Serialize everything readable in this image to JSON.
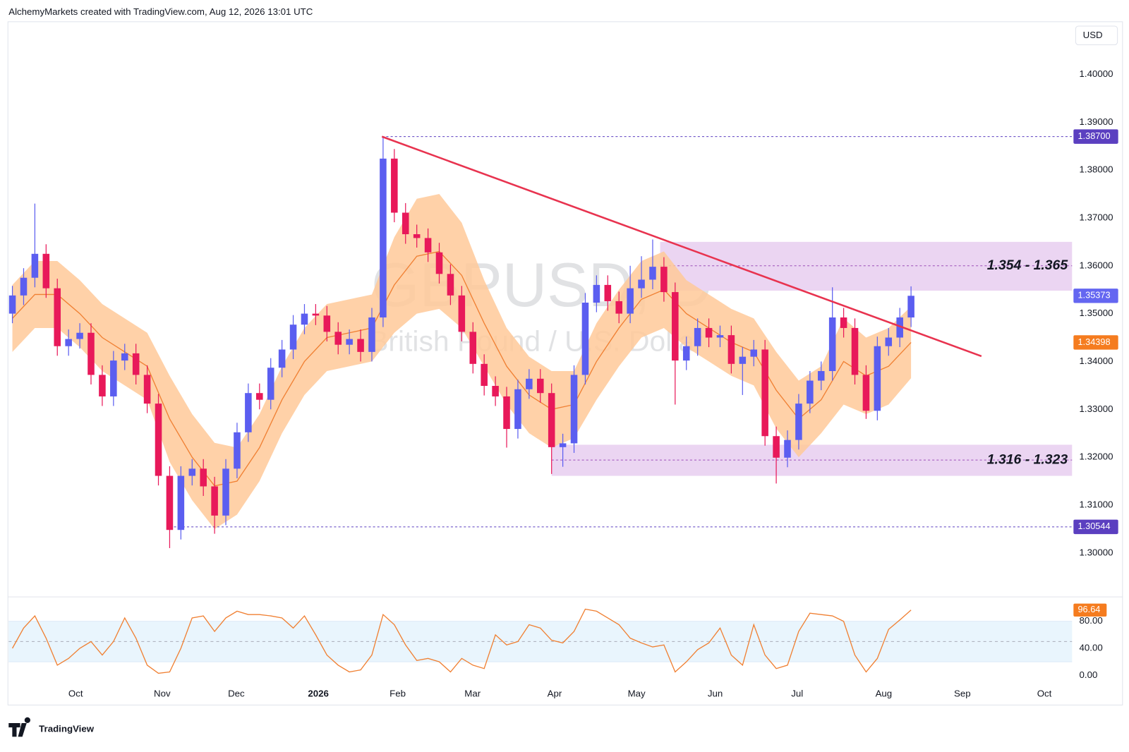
{
  "chart_data": {
    "type": "candlestick",
    "header": "AlchemyMarkets created with TradingView.com, Aug 12, 2026 13:01 UTC",
    "title": "GBPUSD, D",
    "subtitle": "British Pound / U.S. Dollar",
    "currency": "USD",
    "brand": "TradingView",
    "up_color": "#5b5ef0",
    "down_color": "#e8195a",
    "grid": false,
    "xlim": [
      -1,
      283
    ],
    "xticks": [
      {
        "value": 16.9,
        "label": "Oct"
      },
      {
        "value": 40,
        "label": "Nov"
      },
      {
        "value": 59.8,
        "label": "Dec"
      },
      {
        "value": 81.7,
        "label": "2026"
      },
      {
        "value": 102.9,
        "label": "Feb"
      },
      {
        "value": 122.9,
        "label": "Mar"
      },
      {
        "value": 144.8,
        "label": "Apr"
      },
      {
        "value": 166.7,
        "label": "May"
      },
      {
        "value": 187.7,
        "label": "Jun"
      },
      {
        "value": 209.6,
        "label": "Jul"
      },
      {
        "value": 232.7,
        "label": "Aug"
      },
      {
        "value": 253.7,
        "label": "Sep"
      },
      {
        "value": 275.6,
        "label": "Oct"
      }
    ],
    "ylim": [
      1.2908,
      1.411
    ],
    "yticks": [
      {
        "value": 1.3,
        "label": "1.30000"
      },
      {
        "value": 1.31,
        "label": "1.31000"
      },
      {
        "value": 1.32,
        "label": "1.32000"
      },
      {
        "value": 1.33,
        "label": "1.33000"
      },
      {
        "value": 1.34,
        "label": "1.34000"
      },
      {
        "value": 1.35,
        "label": "1.35000"
      },
      {
        "value": 1.36,
        "label": "1.36000"
      },
      {
        "value": 1.37,
        "label": "1.37000"
      },
      {
        "value": 1.38,
        "label": "1.38000"
      },
      {
        "value": 1.39,
        "label": "1.39000"
      },
      {
        "value": 1.4,
        "label": "1.40000"
      }
    ],
    "x": [
      0,
      3,
      6,
      9,
      12,
      15,
      18,
      21,
      24,
      27,
      30,
      33,
      36,
      39,
      42,
      45,
      48,
      51,
      54,
      57,
      60,
      63,
      66,
      69,
      72,
      75,
      78,
      81,
      84,
      87,
      90,
      93,
      96,
      99,
      102,
      105,
      108,
      111,
      114,
      117,
      120,
      123,
      126,
      129,
      132,
      135,
      138,
      141,
      144,
      147,
      150,
      153,
      156,
      159,
      162,
      165,
      168,
      171,
      174,
      177,
      180,
      183,
      186,
      189,
      192,
      195,
      198,
      201,
      204,
      207,
      210,
      213,
      216,
      219,
      222,
      225,
      228,
      231,
      234,
      237,
      240
    ],
    "open": [
      1.35,
      1.3538,
      1.3575,
      1.3625,
      1.3553,
      1.3432,
      1.3447,
      1.346,
      1.3372,
      1.3327,
      1.3402,
      1.3417,
      1.3372,
      1.3312,
      1.3161,
      1.3048,
      1.3161,
      1.3176,
      1.3139,
      1.3078,
      1.3176,
      1.3252,
      1.3334,
      1.332,
      1.3387,
      1.3425,
      1.3477,
      1.35,
      1.3496,
      1.3462,
      1.3435,
      1.3447,
      1.342,
      1.3492,
      1.3824,
      1.3711,
      1.3666,
      1.3658,
      1.3628,
      1.3583,
      1.3538,
      1.3462,
      1.3395,
      1.3349,
      1.3327,
      1.3259,
      1.3342,
      1.3364,
      1.3334,
      1.3221,
      1.3229,
      1.3372,
      1.3523,
      1.356,
      1.3526,
      1.35,
      1.3553,
      1.3571,
      1.3598,
      1.3545,
      1.3402,
      1.3432,
      1.347,
      1.345,
      1.3455,
      1.3395,
      1.341,
      1.3425,
      1.3244,
      1.3199,
      1.3236,
      1.3312,
      1.336,
      1.338,
      1.3492,
      1.347,
      1.3372,
      1.3297,
      1.3432,
      1.345,
      1.3492
    ],
    "high": [
      1.3558,
      1.3595,
      1.373,
      1.3645,
      1.3573,
      1.3467,
      1.348,
      1.348,
      1.3392,
      1.3422,
      1.3437,
      1.3437,
      1.3392,
      1.3332,
      1.3181,
      1.3181,
      1.3196,
      1.3196,
      1.3159,
      1.3196,
      1.3272,
      1.3354,
      1.3354,
      1.3407,
      1.3445,
      1.3497,
      1.352,
      1.352,
      1.3516,
      1.3482,
      1.3467,
      1.3467,
      1.3512,
      1.387,
      1.3844,
      1.3731,
      1.3686,
      1.3678,
      1.3648,
      1.3603,
      1.3558,
      1.3482,
      1.3415,
      1.3369,
      1.3347,
      1.3362,
      1.3384,
      1.3384,
      1.3354,
      1.3249,
      1.3392,
      1.3543,
      1.358,
      1.358,
      1.3546,
      1.36,
      1.362,
      1.3655,
      1.3618,
      1.3565,
      1.3452,
      1.349,
      1.349,
      1.3475,
      1.3475,
      1.343,
      1.3445,
      1.3445,
      1.3264,
      1.3256,
      1.3332,
      1.338,
      1.34,
      1.3555,
      1.3512,
      1.349,
      1.3392,
      1.3452,
      1.347,
      1.3512,
      1.3557
    ],
    "low": [
      1.348,
      1.3518,
      1.3555,
      1.3533,
      1.3412,
      1.3412,
      1.3427,
      1.3352,
      1.3307,
      1.3307,
      1.3382,
      1.3352,
      1.3292,
      1.3141,
      1.301,
      1.3028,
      1.3141,
      1.3119,
      1.304,
      1.3058,
      1.3156,
      1.3232,
      1.33,
      1.33,
      1.3367,
      1.3405,
      1.3457,
      1.3476,
      1.3442,
      1.3415,
      1.3415,
      1.34,
      1.34,
      1.3472,
      1.3691,
      1.3646,
      1.3638,
      1.3608,
      1.3563,
      1.3518,
      1.3442,
      1.3375,
      1.3329,
      1.3307,
      1.322,
      1.3239,
      1.3322,
      1.3314,
      1.3165,
      1.318,
      1.3209,
      1.3352,
      1.3503,
      1.3506,
      1.348,
      1.348,
      1.3533,
      1.3551,
      1.3525,
      1.331,
      1.3382,
      1.3412,
      1.343,
      1.343,
      1.3375,
      1.333,
      1.339,
      1.3224,
      1.3145,
      1.3179,
      1.3216,
      1.3292,
      1.334,
      1.336,
      1.345,
      1.3352,
      1.328,
      1.3277,
      1.3412,
      1.343,
      1.3472
    ],
    "close": [
      1.3538,
      1.3575,
      1.3625,
      1.3553,
      1.3432,
      1.3447,
      1.346,
      1.3372,
      1.3327,
      1.3402,
      1.3417,
      1.3372,
      1.3312,
      1.3161,
      1.3048,
      1.3161,
      1.3176,
      1.3139,
      1.3078,
      1.3176,
      1.3252,
      1.3334,
      1.332,
      1.3387,
      1.3425,
      1.3477,
      1.35,
      1.3496,
      1.3462,
      1.3435,
      1.3447,
      1.342,
      1.3492,
      1.3824,
      1.3711,
      1.3666,
      1.3658,
      1.3628,
      1.3583,
      1.3538,
      1.3462,
      1.3395,
      1.3349,
      1.3327,
      1.3259,
      1.3342,
      1.3364,
      1.3334,
      1.3221,
      1.3229,
      1.3372,
      1.3523,
      1.356,
      1.3526,
      1.35,
      1.3553,
      1.3571,
      1.3598,
      1.3545,
      1.3402,
      1.3432,
      1.347,
      1.345,
      1.3455,
      1.3395,
      1.341,
      1.3425,
      1.3244,
      1.3199,
      1.3236,
      1.3312,
      1.336,
      1.338,
      1.3492,
      1.347,
      1.3372,
      1.3297,
      1.3432,
      1.345,
      1.3492,
      1.35373
    ],
    "band": {
      "fill": "#ffc999",
      "line_color": "#f08033",
      "x": [
        0,
        6,
        12,
        18,
        24,
        30,
        36,
        42,
        48,
        54,
        60,
        66,
        72,
        78,
        84,
        90,
        96,
        102,
        108,
        114,
        120,
        126,
        132,
        138,
        144,
        150,
        156,
        162,
        168,
        174,
        180,
        186,
        192,
        198,
        204,
        210,
        216,
        222,
        228,
        234,
        240
      ],
      "upper": [
        1.356,
        1.361,
        1.361,
        1.357,
        1.352,
        1.349,
        1.346,
        1.337,
        1.329,
        1.323,
        1.322,
        1.329,
        1.339,
        1.347,
        1.352,
        1.353,
        1.354,
        1.366,
        1.374,
        1.375,
        1.369,
        1.357,
        1.347,
        1.341,
        1.338,
        1.338,
        1.348,
        1.355,
        1.361,
        1.363,
        1.357,
        1.354,
        1.351,
        1.349,
        1.342,
        1.336,
        1.339,
        1.349,
        1.345,
        1.347,
        1.3515
      ],
      "middle": [
        1.349,
        1.354,
        1.354,
        1.35,
        1.345,
        1.342,
        1.339,
        1.328,
        1.32,
        1.314,
        1.315,
        1.322,
        1.332,
        1.34,
        1.345,
        1.346,
        1.347,
        1.356,
        1.362,
        1.363,
        1.358,
        1.348,
        1.339,
        1.333,
        1.33,
        1.331,
        1.34,
        1.347,
        1.353,
        1.355,
        1.35,
        1.347,
        1.344,
        1.342,
        1.334,
        1.328,
        1.332,
        1.34,
        1.337,
        1.339,
        1.34398
      ],
      "lower": [
        1.342,
        1.347,
        1.347,
        1.343,
        1.338,
        1.335,
        1.332,
        1.319,
        1.311,
        1.305,
        1.308,
        1.315,
        1.325,
        1.333,
        1.338,
        1.339,
        1.34,
        1.346,
        1.35,
        1.351,
        1.347,
        1.339,
        1.331,
        1.325,
        1.322,
        1.324,
        1.332,
        1.339,
        1.345,
        1.347,
        1.343,
        1.34,
        1.337,
        1.335,
        1.326,
        1.32,
        1.325,
        1.331,
        1.329,
        1.331,
        1.3365
      ]
    },
    "zones": [
      {
        "label": "1.354 - 1.365",
        "low": 1.3548,
        "high": 1.365,
        "mid": 1.36,
        "from_x": 173,
        "color": "#ebd5f2"
      },
      {
        "label": "1.316 - 1.323",
        "low": 1.3161,
        "high": 1.3226,
        "mid": 1.3194,
        "from_x": 144,
        "color": "#ebd5f2"
      }
    ],
    "levels": [
      {
        "value": 1.387,
        "label": "1.38700",
        "from_x": 98.7,
        "color": "#5b3fc0"
      },
      {
        "value": 1.30544,
        "label": "1.30544",
        "from_x": 42,
        "color": "#5b3fc0"
      }
    ],
    "price_tags": [
      {
        "value": 1.35373,
        "label": "1.35373",
        "color": "#6466f1"
      },
      {
        "value": 1.34398,
        "label": "1.34398",
        "color": "#f57c1f"
      }
    ],
    "trendline": {
      "x": [
        98.7,
        258.8
      ],
      "y": [
        1.387,
        1.3411
      ],
      "color": "#e8334f"
    },
    "oscillator": {
      "color": "#f08033",
      "ylim": [
        -12,
        114
      ],
      "yticks": [
        {
          "value": 80,
          "label": "80.00"
        },
        {
          "value": 40,
          "label": "40.00"
        },
        {
          "value": 0,
          "label": "0.00"
        }
      ],
      "bands": [
        20,
        80
      ],
      "midline": 50,
      "values": [
        40,
        70,
        88,
        55,
        15,
        25,
        40,
        50,
        30,
        50,
        85,
        55,
        15,
        3,
        5,
        40,
        85,
        88,
        65,
        85,
        95,
        90,
        90,
        88,
        85,
        70,
        88,
        60,
        30,
        15,
        5,
        8,
        30,
        90,
        75,
        45,
        22,
        25,
        20,
        5,
        25,
        15,
        10,
        60,
        45,
        50,
        75,
        70,
        52,
        48,
        65,
        98,
        95,
        85,
        75,
        55,
        48,
        42,
        45,
        5,
        20,
        38,
        48,
        70,
        30,
        15,
        75,
        30,
        10,
        15,
        65,
        92,
        90,
        88,
        80,
        30,
        5,
        25,
        68,
        82,
        96.64
      ],
      "tag": {
        "value": 96.64,
        "label": "96.64",
        "color": "#f57c1f"
      }
    }
  }
}
